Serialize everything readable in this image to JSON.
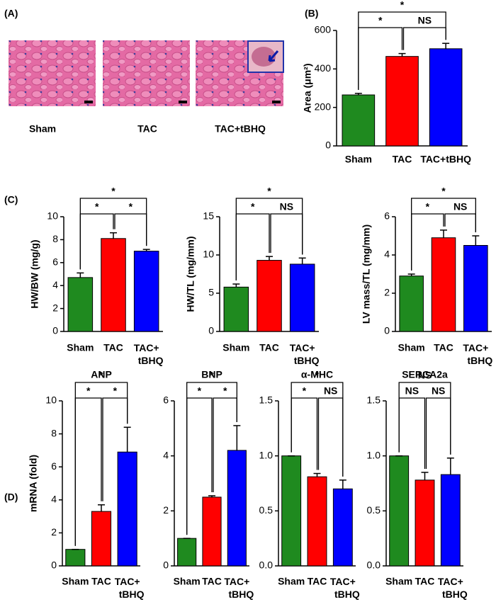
{
  "panel_labels": [
    "(A)",
    "(B)",
    "(C)",
    "(D)"
  ],
  "histology": {
    "labels": [
      "Sham",
      "TAC",
      "TAC+tBHQ"
    ]
  },
  "chart_data": [
    {
      "type": "bar",
      "ylabel": "Area (μm²)",
      "categories": [
        "Sham",
        "TAC",
        "TAC+tBHQ"
      ],
      "colors": [
        "#1f8a1f",
        "#ff0000",
        "#0000ff"
      ],
      "values": [
        265,
        465,
        505
      ],
      "errors": [
        8,
        15,
        28
      ],
      "ylim": [
        0,
        600
      ],
      "yticks": [
        0,
        200,
        400,
        600
      ],
      "comparisons": [
        {
          "pair": [
            0,
            1
          ],
          "label": "*"
        },
        {
          "pair": [
            1,
            2
          ],
          "label": "NS"
        },
        {
          "pair": [
            0,
            2
          ],
          "label": "*"
        }
      ]
    },
    {
      "type": "bar",
      "ylabel": "HW/BW (mg/g)",
      "categories": [
        "Sham",
        "TAC",
        "TAC+tBHQ"
      ],
      "colors": [
        "#1f8a1f",
        "#ff0000",
        "#0000ff"
      ],
      "values": [
        4.7,
        8.1,
        7.0
      ],
      "errors": [
        0.4,
        0.5,
        0.15
      ],
      "ylim": [
        0,
        10
      ],
      "yticks": [
        0,
        2,
        4,
        6,
        8,
        10
      ],
      "comparisons": [
        {
          "pair": [
            0,
            1
          ],
          "label": "*"
        },
        {
          "pair": [
            1,
            2
          ],
          "label": "*"
        },
        {
          "pair": [
            0,
            2
          ],
          "label": "*"
        }
      ]
    },
    {
      "type": "bar",
      "ylabel": "HW/TL (mg/mm)",
      "categories": [
        "Sham",
        "TAC",
        "TAC+tBHQ"
      ],
      "colors": [
        "#1f8a1f",
        "#ff0000",
        "#0000ff"
      ],
      "values": [
        5.8,
        9.3,
        8.8
      ],
      "errors": [
        0.4,
        0.5,
        0.8
      ],
      "ylim": [
        0,
        15
      ],
      "yticks": [
        0,
        5,
        10,
        15
      ],
      "comparisons": [
        {
          "pair": [
            0,
            1
          ],
          "label": "*"
        },
        {
          "pair": [
            1,
            2
          ],
          "label": "NS"
        },
        {
          "pair": [
            0,
            2
          ],
          "label": "*"
        }
      ]
    },
    {
      "type": "bar",
      "ylabel": "LV mass/TL (mg/mm)",
      "categories": [
        "Sham",
        "TAC",
        "TAC+tBHQ"
      ],
      "colors": [
        "#1f8a1f",
        "#ff0000",
        "#0000ff"
      ],
      "values": [
        2.9,
        4.9,
        4.5
      ],
      "errors": [
        0.1,
        0.4,
        0.5
      ],
      "ylim": [
        0,
        6
      ],
      "yticks": [
        0,
        2,
        4,
        6
      ],
      "comparisons": [
        {
          "pair": [
            0,
            1
          ],
          "label": "*"
        },
        {
          "pair": [
            1,
            2
          ],
          "label": "NS"
        },
        {
          "pair": [
            0,
            2
          ],
          "label": "*"
        }
      ]
    },
    {
      "type": "bar",
      "title": "ANP",
      "ylabel": "mRNA (fold)",
      "categories": [
        "Sham",
        "TAC",
        "TAC+tBHQ"
      ],
      "colors": [
        "#1f8a1f",
        "#ff0000",
        "#0000ff"
      ],
      "values": [
        1.0,
        3.3,
        6.9
      ],
      "errors": [
        0,
        0.4,
        1.5
      ],
      "ylim": [
        0,
        10
      ],
      "yticks": [
        0,
        2,
        4,
        6,
        8,
        10
      ],
      "comparisons": [
        {
          "pair": [
            0,
            1
          ],
          "label": "*"
        },
        {
          "pair": [
            1,
            2
          ],
          "label": "*"
        },
        {
          "pair": [
            0,
            2
          ],
          "label": "*"
        }
      ]
    },
    {
      "type": "bar",
      "title": "BNP",
      "categories": [
        "Sham",
        "TAC",
        "TAC+tBHQ"
      ],
      "colors": [
        "#1f8a1f",
        "#ff0000",
        "#0000ff"
      ],
      "values": [
        1.0,
        2.5,
        4.2
      ],
      "errors": [
        0,
        0.05,
        0.9
      ],
      "ylim": [
        0,
        6
      ],
      "yticks": [
        0,
        2,
        4,
        6
      ],
      "comparisons": [
        {
          "pair": [
            0,
            1
          ],
          "label": "*"
        },
        {
          "pair": [
            1,
            2
          ],
          "label": "*"
        },
        {
          "pair": [
            0,
            2
          ],
          "label": "*"
        }
      ]
    },
    {
      "type": "bar",
      "title": "α-MHC",
      "categories": [
        "Sham",
        "TAC",
        "TAC+tBHQ"
      ],
      "colors": [
        "#1f8a1f",
        "#ff0000",
        "#0000ff"
      ],
      "values": [
        1.0,
        0.81,
        0.7
      ],
      "errors": [
        0,
        0.03,
        0.08
      ],
      "ylim": [
        0,
        1.5
      ],
      "yticks": [
        {
          "value": 0,
          "label": "0.0"
        },
        0.5,
        {
          "value": 1,
          "label": "1.0"
        },
        1.5
      ],
      "comparisons": [
        {
          "pair": [
            0,
            1
          ],
          "label": "*"
        },
        {
          "pair": [
            1,
            2
          ],
          "label": "NS"
        },
        {
          "pair": [
            0,
            2
          ],
          "label": "*"
        }
      ]
    },
    {
      "type": "bar",
      "title": "SERCA2a",
      "categories": [
        "Sham",
        "TAC",
        "TAC+tBHQ"
      ],
      "colors": [
        "#1f8a1f",
        "#ff0000",
        "#0000ff"
      ],
      "values": [
        1.0,
        0.78,
        0.83
      ],
      "errors": [
        0,
        0.07,
        0.15
      ],
      "ylim": [
        0,
        1.5
      ],
      "yticks": [
        {
          "value": 0,
          "label": "0.0"
        },
        0.5,
        {
          "value": 1,
          "label": "1.0"
        },
        1.5
      ],
      "comparisons": [
        {
          "pair": [
            0,
            1
          ],
          "label": "NS"
        },
        {
          "pair": [
            1,
            2
          ],
          "label": "NS"
        },
        {
          "pair": [
            0,
            2
          ],
          "label": "NS"
        }
      ]
    }
  ]
}
